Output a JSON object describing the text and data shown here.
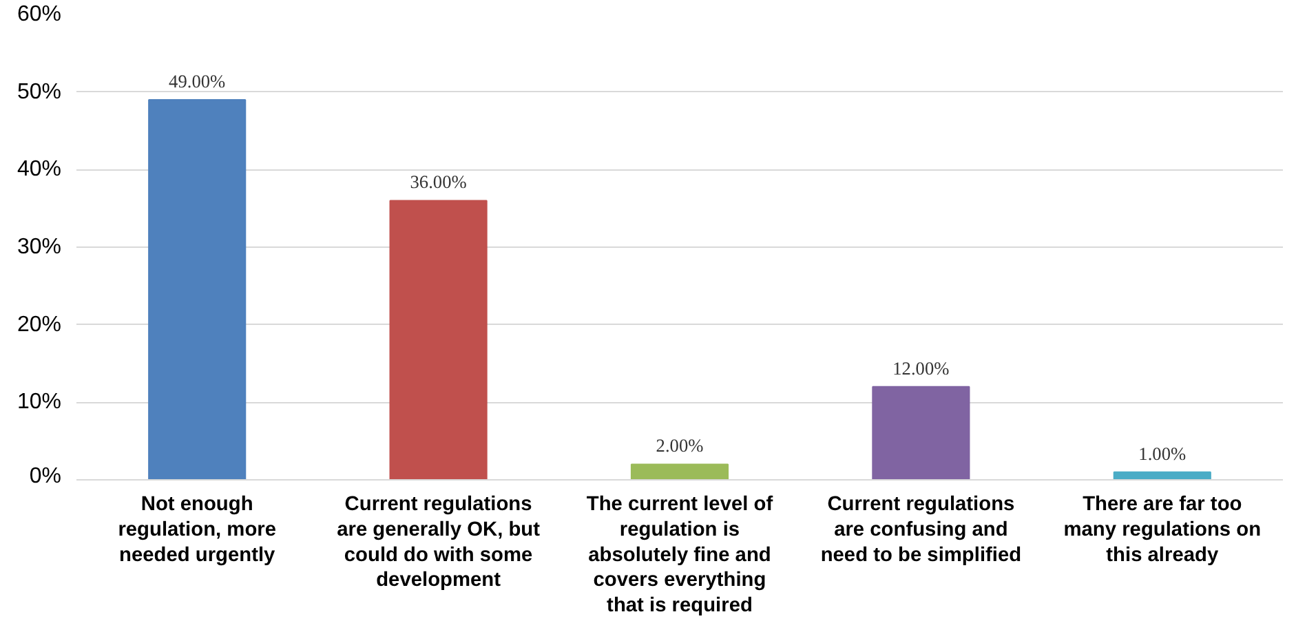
{
  "chart_data": {
    "type": "bar",
    "categories": [
      "Not enough regulation, more needed urgently",
      "Current regulations are generally OK, but could do with some development",
      "The current level of regulation is absolutely fine and covers everything that is required",
      "Current regulations are confusing and need to be simplified",
      "There are far too many regulations on this already"
    ],
    "values": [
      49,
      36,
      2,
      12,
      1
    ],
    "colors": [
      "#4f81bd",
      "#c0504d",
      "#9bbb59",
      "#8064a2",
      "#4bacc6"
    ],
    "value_labels": [
      "49.00%",
      "36.00%",
      "2.00%",
      "12.00%",
      "1.00%"
    ],
    "ylim": [
      0,
      60
    ],
    "yticks": [
      {
        "value": 0,
        "label": "0%"
      },
      {
        "value": 10,
        "label": "10%"
      },
      {
        "value": 20,
        "label": "20%"
      },
      {
        "value": 30,
        "label": "30%"
      },
      {
        "value": 40,
        "label": "40%"
      },
      {
        "value": 50,
        "label": "50%"
      },
      {
        "value": 60,
        "label": "60%"
      }
    ],
    "grid": "y"
  }
}
